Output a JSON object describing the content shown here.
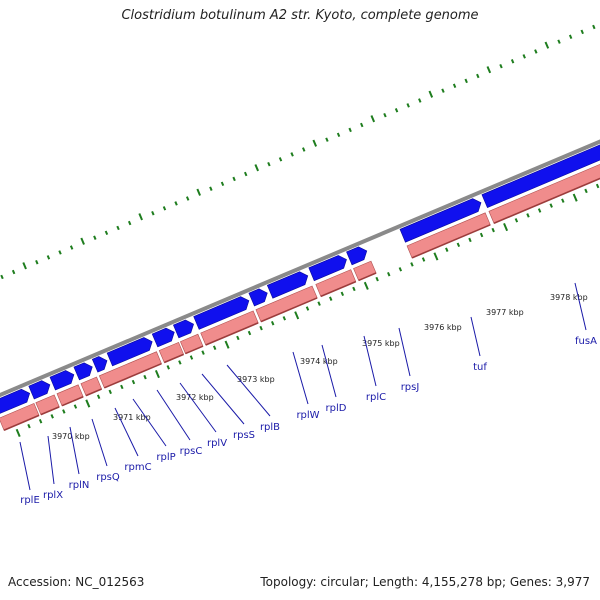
{
  "title": "Clostridium botulinum A2 str. Kyoto, complete genome",
  "accession_text": "Accession: NC_012563",
  "topology_text": "Topology: circular; Length: 4,155,278 bp; Genes: 3,977",
  "colors": {
    "forward_gene": "#1010ee",
    "reverse_gene": "#f08c8c",
    "backbone": "#8a8a8a",
    "ticks": "#1e7d1e",
    "gene_label": "#1a1aa8"
  },
  "kbp_labels": [
    "3970 kbp",
    "3971 kbp",
    "3972 kbp",
    "3973 kbp",
    "3974 kbp",
    "3975 kbp",
    "3976 kbp",
    "3977 kbp",
    "3978 kbp"
  ],
  "gene_labels": [
    "rplE",
    "rplX",
    "rplN",
    "rpsQ",
    "rpmC",
    "rplP",
    "rpsC",
    "rplV",
    "rpsS",
    "rplB",
    "rplW",
    "rplD",
    "rplC",
    "rpsJ",
    "tuf",
    "fusA"
  ]
}
